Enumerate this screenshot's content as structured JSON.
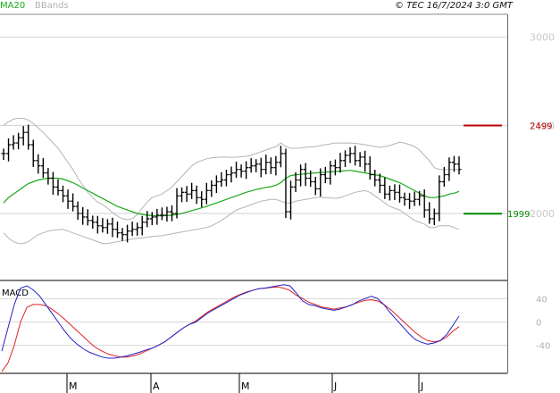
{
  "header": {
    "legend_ma": "MA20",
    "legend_bb": "BBands",
    "source": "© TEC 16/7/2024 3:0 GMT"
  },
  "colors": {
    "candles": "#000000",
    "ma20": "#1aa81a",
    "bbands": "#b4b4b4",
    "resistance": "#c00000",
    "support": "#008800",
    "macd": "#2222cc",
    "signal": "#dd2222"
  },
  "chart_data": [
    {
      "type": "candlestick",
      "title": "",
      "x_tick_labels": [
        "M",
        "A",
        "M",
        "J",
        "J"
      ],
      "y_tick_labels": [
        "3000",
        "2500",
        "2000"
      ],
      "ylim": [
        1620,
        3130
      ],
      "grid": true,
      "series_names": [
        "MA20",
        "BBands"
      ],
      "levels": [
        {
          "name": "resistance",
          "value": 2499,
          "label": "2499"
        },
        {
          "name": "support",
          "value": 1999,
          "label": "1999"
        }
      ],
      "close": [
        2340,
        2390,
        2400,
        2430,
        2460,
        2390,
        2300,
        2270,
        2230,
        2200,
        2150,
        2130,
        2100,
        2070,
        2040,
        2000,
        1980,
        1960,
        1950,
        1930,
        1920,
        1940,
        1910,
        1890,
        1880,
        1900,
        1910,
        1920,
        1950,
        1970,
        1980,
        1990,
        1990,
        2010,
        2000,
        2100,
        2120,
        2110,
        2130,
        2090,
        2080,
        2130,
        2160,
        2180,
        2190,
        2220,
        2230,
        2250,
        2240,
        2260,
        2270,
        2280,
        2250,
        2290,
        2260,
        2290,
        2340,
        2010,
        2150,
        2190,
        2250,
        2200,
        2180,
        2140,
        2220,
        2200,
        2270,
        2260,
        2300,
        2330,
        2340,
        2300,
        2320,
        2280,
        2220,
        2190,
        2160,
        2110,
        2130,
        2120,
        2090,
        2080,
        2070,
        2080,
        2100,
        2020,
        1970,
        2000,
        2180,
        2220,
        2290,
        2280,
        2250
      ],
      "ma20": [
        2060,
        2090,
        2110,
        2130,
        2150,
        2170,
        2180,
        2190,
        2195,
        2200,
        2200,
        2200,
        2195,
        2185,
        2175,
        2160,
        2145,
        2130,
        2115,
        2100,
        2085,
        2070,
        2055,
        2040,
        2030,
        2020,
        2010,
        2000,
        1995,
        1990,
        1988,
        1987,
        1987,
        1988,
        1990,
        1995,
        2000,
        2008,
        2016,
        2024,
        2032,
        2040,
        2050,
        2060,
        2070,
        2080,
        2090,
        2100,
        2110,
        2120,
        2128,
        2136,
        2142,
        2148,
        2152,
        2160,
        2175,
        2200,
        2215,
        2220,
        2222,
        2225,
        2228,
        2230,
        2232,
        2234,
        2236,
        2238,
        2240,
        2242,
        2245,
        2240,
        2235,
        2230,
        2225,
        2220,
        2215,
        2205,
        2195,
        2185,
        2175,
        2160,
        2145,
        2130,
        2115,
        2100,
        2090,
        2090,
        2095,
        2100,
        2110,
        2115,
        2125
      ],
      "bb_upper": [
        2500,
        2520,
        2535,
        2540,
        2540,
        2530,
        2510,
        2485,
        2460,
        2430,
        2400,
        2370,
        2330,
        2290,
        2250,
        2200,
        2160,
        2120,
        2090,
        2065,
        2050,
        2030,
        2005,
        1985,
        1970,
        1965,
        1970,
        1995,
        2030,
        2065,
        2090,
        2100,
        2110,
        2130,
        2150,
        2180,
        2210,
        2240,
        2270,
        2290,
        2300,
        2310,
        2315,
        2318,
        2320,
        2320,
        2318,
        2320,
        2322,
        2325,
        2330,
        2340,
        2350,
        2360,
        2370,
        2380,
        2400,
        2380,
        2370,
        2370,
        2372,
        2375,
        2378,
        2380,
        2385,
        2390,
        2395,
        2400,
        2400,
        2400,
        2400,
        2398,
        2395,
        2390,
        2385,
        2380,
        2375,
        2380,
        2385,
        2395,
        2405,
        2400,
        2390,
        2380,
        2360,
        2330,
        2300,
        2260,
        2250,
        2250,
        2250,
        2250,
        2250
      ],
      "bb_lower": [
        1890,
        1860,
        1840,
        1830,
        1830,
        1840,
        1860,
        1880,
        1890,
        1900,
        1905,
        1908,
        1910,
        1900,
        1890,
        1880,
        1870,
        1860,
        1850,
        1840,
        1830,
        1830,
        1835,
        1840,
        1845,
        1850,
        1855,
        1860,
        1862,
        1865,
        1870,
        1872,
        1875,
        1880,
        1885,
        1890,
        1895,
        1900,
        1905,
        1910,
        1915,
        1920,
        1930,
        1945,
        1960,
        1980,
        2000,
        2020,
        2030,
        2040,
        2050,
        2060,
        2070,
        2075,
        2080,
        2080,
        2070,
        2060,
        2060,
        2070,
        2075,
        2080,
        2085,
        2090,
        2092,
        2090,
        2088,
        2086,
        2090,
        2100,
        2110,
        2120,
        2125,
        2130,
        2120,
        2100,
        2080,
        2060,
        2040,
        2030,
        2020,
        2000,
        1980,
        1960,
        1950,
        1940,
        1920,
        1920,
        1930,
        1930,
        1930,
        1920,
        1910
      ]
    },
    {
      "type": "line",
      "title": "MACD",
      "y_tick_labels": [
        "40",
        "0",
        "-40"
      ],
      "ylim": [
        -85,
        65
      ],
      "macd": [
        -50,
        -10,
        30,
        58,
        62,
        55,
        45,
        30,
        15,
        0,
        -15,
        -28,
        -38,
        -46,
        -52,
        -56,
        -60,
        -62,
        -62,
        -60,
        -58,
        -55,
        -52,
        -48,
        -45,
        -40,
        -34,
        -26,
        -18,
        -10,
        -4,
        0,
        8,
        16,
        22,
        28,
        34,
        40,
        46,
        50,
        54,
        57,
        58,
        60,
        62,
        64,
        62,
        50,
        36,
        30,
        28,
        24,
        22,
        20,
        22,
        26,
        30,
        36,
        40,
        44,
        40,
        30,
        16,
        4,
        -8,
        -20,
        -30,
        -35,
        -38,
        -36,
        -32,
        -22,
        -6,
        10
      ],
      "signal": [
        -85,
        -70,
        -40,
        0,
        25,
        30,
        30,
        28,
        22,
        14,
        5,
        -5,
        -15,
        -25,
        -35,
        -44,
        -50,
        -55,
        -58,
        -60,
        -60,
        -58,
        -55,
        -50,
        -45,
        -40,
        -34,
        -26,
        -18,
        -10,
        -4,
        2,
        10,
        18,
        24,
        30,
        36,
        42,
        47,
        51,
        54,
        57,
        58,
        59,
        60,
        58,
        54,
        46,
        40,
        34,
        30,
        26,
        24,
        22,
        24,
        26,
        30,
        34,
        37,
        38,
        36,
        30,
        22,
        12,
        2,
        -8,
        -18,
        -26,
        -32,
        -34,
        -32,
        -26,
        -16,
        -8
      ]
    }
  ]
}
